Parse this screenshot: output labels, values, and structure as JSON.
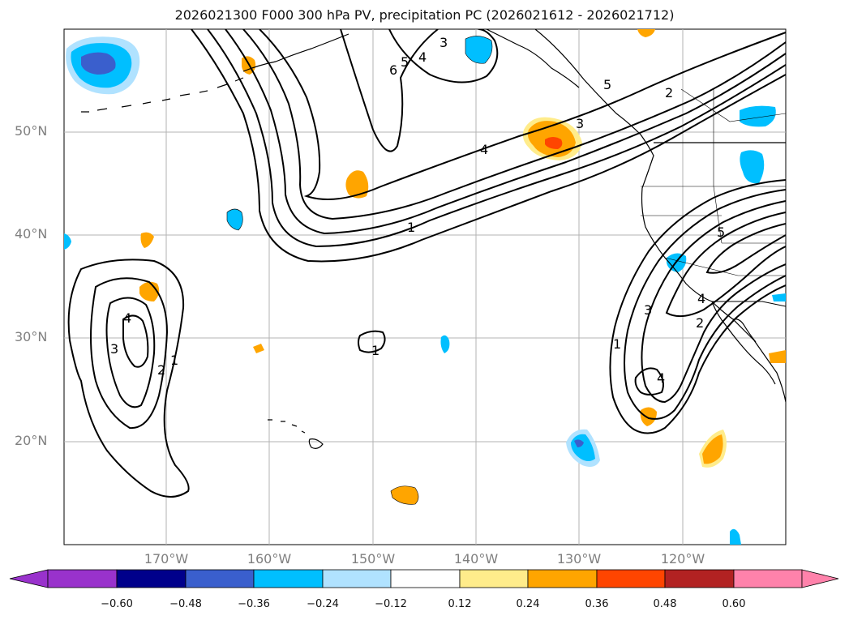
{
  "title": "2026021300 F000 300 hPa PV, precipitation PC (2026021612 - 2026021712)",
  "lat_labels": [
    "50°N",
    "40°N",
    "30°N",
    "20°N"
  ],
  "lon_labels": [
    "170°W",
    "160°W",
    "150°W",
    "140°W",
    "130°W",
    "120°W"
  ],
  "colorbar": {
    "ticks": [
      "−0.60",
      "−0.48",
      "−0.36",
      "−0.24",
      "−0.12",
      "0.12",
      "0.24",
      "0.36",
      "0.48",
      "0.60"
    ],
    "colors": [
      "#9932CC",
      "#00008B",
      "#3A5FCD",
      "#00BFFF",
      "#B0E2FF",
      "#FFFFFF",
      "#FFEC8B",
      "#FFA500",
      "#FF4500",
      "#B22222",
      "#FF82AB"
    ]
  },
  "contour_labels": {
    "north_jet": [
      "1",
      "2",
      "3",
      "4",
      "5"
    ],
    "north_top": [
      "6",
      "5",
      "4",
      "3"
    ],
    "west_low": [
      "4",
      "3",
      "2",
      "1"
    ],
    "small_center": [
      "1"
    ],
    "southeast": [
      "1",
      "2",
      "3",
      "4",
      "4",
      "5"
    ]
  }
}
